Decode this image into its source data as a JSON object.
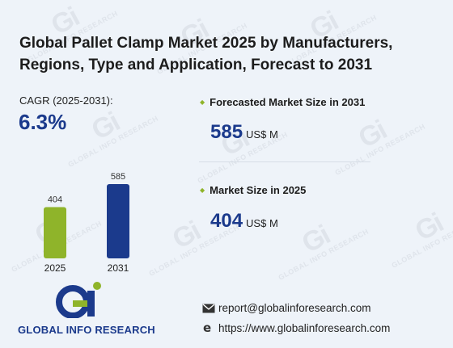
{
  "title": "Global Pallet Clamp Market 2025 by Manufacturers, Regions, Type and Application, Forecast to 2031",
  "cagr": {
    "label_main": "CAGR",
    "label_period": "(2025-2031):",
    "value": "6.3%"
  },
  "kpis": [
    {
      "title": "Forecasted Market Size in 2031",
      "value": "585",
      "unit": "US$ M"
    },
    {
      "title": "Market Size in 2025",
      "value": "404",
      "unit": "US$ M"
    }
  ],
  "logo": {
    "text": "GLOBAL INFO RESEARCH"
  },
  "contact": {
    "email": "report@globalinforesearch.com",
    "website": "https://www.globalinforesearch.com"
  },
  "watermark": "GLOBAL INFO RESEARCH",
  "colors": {
    "bar_2025": "#8fb42a",
    "bar_2031": "#1b3a8c",
    "accent": "#1b3a8c"
  },
  "chart_data": {
    "type": "bar",
    "categories": [
      "2025",
      "2031"
    ],
    "values": [
      404,
      585
    ],
    "data_labels": [
      "404",
      "585"
    ],
    "title": "",
    "xlabel": "",
    "ylabel": "",
    "grid": false
  }
}
